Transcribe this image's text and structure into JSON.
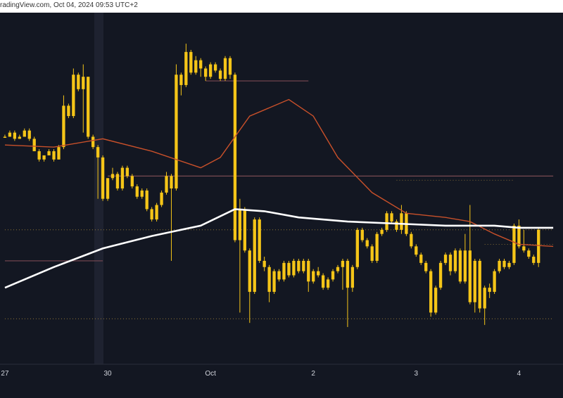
{
  "watermark": "radingView.com, Oct 04, 2024 09:53 UTC+2",
  "chart_data": {
    "type": "candlestick",
    "x_tick_labels": [
      "27",
      "30",
      "Oct",
      "2",
      "3",
      "4"
    ],
    "x_tick_index": [
      0,
      21,
      42,
      63,
      84,
      105
    ],
    "colors": {
      "background": "#131722",
      "candle": "#f5c518",
      "ma_fast": "#c8502a",
      "ma_slow": "#ffffff",
      "level_line": "#7a4a52",
      "dotted_line": "#c8a040",
      "axis_text": "#d1d4dc"
    },
    "candles": [
      [
        -0.5,
        -0.5,
        -0.4,
        -0.5
      ],
      [
        -0.5,
        -0.3,
        -0.2,
        -0.3
      ],
      [
        -0.3,
        -0.6,
        -0.2,
        -0.7
      ],
      [
        -0.6,
        -0.5,
        -0.4,
        -0.6
      ],
      [
        -0.5,
        -0.2,
        -0.1,
        -0.5
      ],
      [
        -0.2,
        -0.6,
        -0.1,
        -0.7
      ],
      [
        -0.6,
        -1.2,
        -0.5,
        -1.2
      ],
      [
        -1.2,
        -1.6,
        -1.1,
        -1.7
      ],
      [
        -1.6,
        -1.4,
        -1.4,
        -1.7
      ],
      [
        -1.4,
        -1.2,
        -1.1,
        -1.4
      ],
      [
        -1.2,
        -1.6,
        -1.1,
        -1.7
      ],
      [
        -1.6,
        -1.0,
        -0.9,
        -1.6
      ],
      [
        -1.0,
        1.0,
        1.5,
        -1.1
      ],
      [
        1.0,
        0.5,
        1.1,
        0.4
      ],
      [
        0.5,
        2.5,
        2.8,
        0.4
      ],
      [
        2.5,
        1.8,
        2.6,
        1.7
      ],
      [
        1.8,
        2.4,
        3.0,
        -0.3
      ],
      [
        2.4,
        -0.5,
        2.4,
        -0.6
      ],
      [
        -0.5,
        -1.0,
        -0.4,
        -1.1
      ],
      [
        -1.0,
        -1.5,
        -0.9,
        -3.5
      ],
      [
        -1.5,
        -3.5,
        -1.4,
        -3.6
      ],
      [
        -3.5,
        -2.5,
        -2.5,
        -3.6
      ],
      [
        -2.5,
        -2.3,
        -2.0,
        -2.6
      ],
      [
        -2.3,
        -3.0,
        -2.2,
        -3.1
      ],
      [
        -3.0,
        -2.0,
        -1.9,
        -3.1
      ],
      [
        -2.0,
        -2.4,
        -1.9,
        -2.5
      ],
      [
        -2.4,
        -2.9,
        -2.3,
        -3.0
      ],
      [
        -2.9,
        -3.4,
        -2.8,
        -3.5
      ],
      [
        -3.4,
        -3.1,
        -3.0,
        -3.5
      ],
      [
        -3.1,
        -4.0,
        -3.0,
        -4.1
      ],
      [
        -4.0,
        -4.5,
        -3.9,
        -4.6
      ],
      [
        -4.5,
        -3.8,
        -3.7,
        -4.6
      ],
      [
        -3.8,
        -3.2,
        -3.1,
        -3.9
      ],
      [
        -3.2,
        -2.4,
        -2.2,
        -3.3
      ],
      [
        -2.4,
        -3.0,
        -2.3,
        -6.5
      ],
      [
        -3.0,
        2.5,
        3.0,
        -3.1
      ],
      [
        2.5,
        2.0,
        2.6,
        1.5
      ],
      [
        2.0,
        3.6,
        4.0,
        1.9
      ],
      [
        3.6,
        2.6,
        3.7,
        2.5
      ],
      [
        2.6,
        3.2,
        3.4,
        2.5
      ],
      [
        3.2,
        2.8,
        3.3,
        2.4
      ],
      [
        2.8,
        2.4,
        2.9,
        2.2
      ],
      [
        2.4,
        3.0,
        3.1,
        2.3
      ],
      [
        3.0,
        2.7,
        3.1,
        2.6
      ],
      [
        2.7,
        2.3,
        2.8,
        2.2
      ],
      [
        2.3,
        3.3,
        3.4,
        2.2
      ],
      [
        3.3,
        2.5,
        3.4,
        2.3
      ],
      [
        2.5,
        -5.5,
        2.6,
        -5.6
      ],
      [
        -5.5,
        -4.0,
        -3.5,
        -9.0
      ],
      [
        -4.0,
        -6.0,
        -3.9,
        -6.1
      ],
      [
        -6.0,
        -8.0,
        -5.9,
        -9.5
      ],
      [
        -8.0,
        -4.5,
        -4.4,
        -8.1
      ],
      [
        -4.5,
        -6.5,
        -4.4,
        -6.6
      ],
      [
        -6.5,
        -6.8,
        -6.3,
        -7.0
      ],
      [
        -6.8,
        -8.0,
        -6.7,
        -8.5
      ],
      [
        -8.0,
        -7.0,
        -6.9,
        -8.1
      ],
      [
        -7.0,
        -7.4,
        -6.9,
        -7.5
      ],
      [
        -7.4,
        -6.6,
        -6.5,
        -7.5
      ],
      [
        -6.6,
        -7.2,
        -6.5,
        -7.3
      ],
      [
        -7.2,
        -6.5,
        -6.4,
        -7.3
      ],
      [
        -6.5,
        -7.0,
        -6.4,
        -7.1
      ],
      [
        -7.0,
        -6.5,
        -6.4,
        -7.1
      ],
      [
        -6.5,
        -7.5,
        -6.4,
        -8.0
      ],
      [
        -7.5,
        -7.0,
        -6.9,
        -7.6
      ],
      [
        -7.0,
        -7.2,
        -6.8,
        -7.3
      ],
      [
        -7.2,
        -7.8,
        -7.1,
        -7.9
      ],
      [
        -7.8,
        -7.4,
        -7.3,
        -7.9
      ],
      [
        -7.4,
        -7.0,
        -6.9,
        -7.5
      ],
      [
        -7.0,
        -6.8,
        -6.7,
        -7.1
      ],
      [
        -6.8,
        -6.5,
        -6.4,
        -7.9
      ],
      [
        -6.5,
        -7.8,
        -6.4,
        -9.7
      ],
      [
        -7.8,
        -6.8,
        -6.7,
        -8.0
      ],
      [
        -6.8,
        -5.0,
        -4.9,
        -6.9
      ],
      [
        -5.0,
        -5.5,
        -4.9,
        -5.6
      ],
      [
        -5.5,
        -5.8,
        -5.4,
        -5.9
      ],
      [
        -5.8,
        -6.5,
        -5.7,
        -6.6
      ],
      [
        -6.5,
        -5.2,
        -5.1,
        -6.6
      ],
      [
        -5.2,
        -5.0,
        -4.9,
        -5.3
      ],
      [
        -5.0,
        -4.2,
        -4.1,
        -5.1
      ],
      [
        -4.2,
        -4.6,
        -4.1,
        -4.7
      ],
      [
        -4.6,
        -5.0,
        -4.5,
        -5.1
      ],
      [
        -5.0,
        -4.2,
        -3.8,
        -5.2
      ],
      [
        -4.2,
        -5.2,
        -4.1,
        -5.3
      ],
      [
        -5.2,
        -5.8,
        -5.1,
        -5.9
      ],
      [
        -5.8,
        -6.2,
        -5.7,
        -6.3
      ],
      [
        -6.2,
        -6.6,
        -6.1,
        -6.7
      ],
      [
        -6.6,
        -7.0,
        -6.5,
        -7.1
      ],
      [
        -7.0,
        -9.0,
        -6.9,
        -9.2
      ],
      [
        -9.0,
        -7.8,
        -7.7,
        -9.1
      ],
      [
        -7.8,
        -6.6,
        -6.5,
        -7.9
      ],
      [
        -6.6,
        -6.2,
        -6.1,
        -6.7
      ],
      [
        -6.2,
        -7.0,
        -6.1,
        -7.2
      ],
      [
        -7.0,
        -6.0,
        -5.9,
        -7.1
      ],
      [
        -6.0,
        -7.5,
        -5.9,
        -7.6
      ],
      [
        -7.5,
        -6.0,
        -5.2,
        -7.6
      ],
      [
        -6.0,
        -8.5,
        -3.8,
        -8.6
      ],
      [
        -8.5,
        -6.5,
        -6.4,
        -9.0
      ],
      [
        -6.5,
        -8.8,
        -6.4,
        -9.0
      ],
      [
        -8.8,
        -7.8,
        -7.7,
        -9.6
      ],
      [
        -7.8,
        -8.0,
        -7.6,
        -8.3
      ],
      [
        -8.0,
        -7.0,
        -6.9,
        -8.1
      ],
      [
        -7.0,
        -6.5,
        -6.4,
        -7.1
      ],
      [
        -6.5,
        -6.8,
        -6.4,
        -6.9
      ],
      [
        -6.8,
        -6.6,
        -6.5,
        -6.9
      ],
      [
        -6.6,
        -4.8,
        -4.7,
        -6.7
      ],
      [
        -4.8,
        -5.8,
        -4.5,
        -5.9
      ],
      [
        -5.8,
        -6.0,
        -5.0,
        -6.1
      ],
      [
        -6.0,
        -6.3,
        -5.9,
        -6.4
      ],
      [
        -6.3,
        -6.6,
        -6.2,
        -6.7
      ],
      [
        -6.6,
        -5.0,
        -4.9,
        -6.8
      ]
    ],
    "ma_fast": [
      [
        0,
        -0.9
      ],
      [
        10,
        -1.0
      ],
      [
        20,
        -0.6
      ],
      [
        30,
        -1.2
      ],
      [
        40,
        -2.0
      ],
      [
        44,
        -1.5
      ],
      [
        50,
        0.5
      ],
      [
        58,
        1.3
      ],
      [
        63,
        0.5
      ],
      [
        68,
        -1.5
      ],
      [
        75,
        -3.2
      ],
      [
        82,
        -4.2
      ],
      [
        90,
        -4.4
      ],
      [
        95,
        -4.6
      ],
      [
        100,
        -5.2
      ],
      [
        105,
        -5.7
      ],
      [
        112,
        -5.8
      ]
    ],
    "ma_slow": [
      [
        0,
        -7.8
      ],
      [
        10,
        -6.8
      ],
      [
        20,
        -5.9
      ],
      [
        30,
        -5.3
      ],
      [
        40,
        -4.8
      ],
      [
        47,
        -4.0
      ],
      [
        53,
        -4.1
      ],
      [
        60,
        -4.4
      ],
      [
        70,
        -4.6
      ],
      [
        80,
        -4.7
      ],
      [
        90,
        -4.8
      ],
      [
        100,
        -4.8
      ],
      [
        105,
        -4.9
      ],
      [
        112,
        -4.9
      ]
    ],
    "levels": [
      {
        "y": -2.4,
        "from": 21,
        "to": 112,
        "style": "solid"
      },
      {
        "y": -6.5,
        "from": 0,
        "to": 20,
        "style": "solid"
      },
      {
        "y": -5.0,
        "from": 0,
        "to": 112,
        "style": "dotted"
      },
      {
        "y": 2.2,
        "from": 41,
        "to": 62,
        "style": "solid"
      },
      {
        "y": -2.6,
        "from": 80,
        "to": 104,
        "style": "dotted"
      },
      {
        "y": -5.7,
        "from": 98,
        "to": 112,
        "style": "dotted"
      },
      {
        "y": -9.3,
        "from": 0,
        "to": 112,
        "style": "dotted"
      }
    ],
    "y_range": [
      -11.5,
      5.5
    ],
    "x_range": [
      -1,
      114
    ]
  }
}
